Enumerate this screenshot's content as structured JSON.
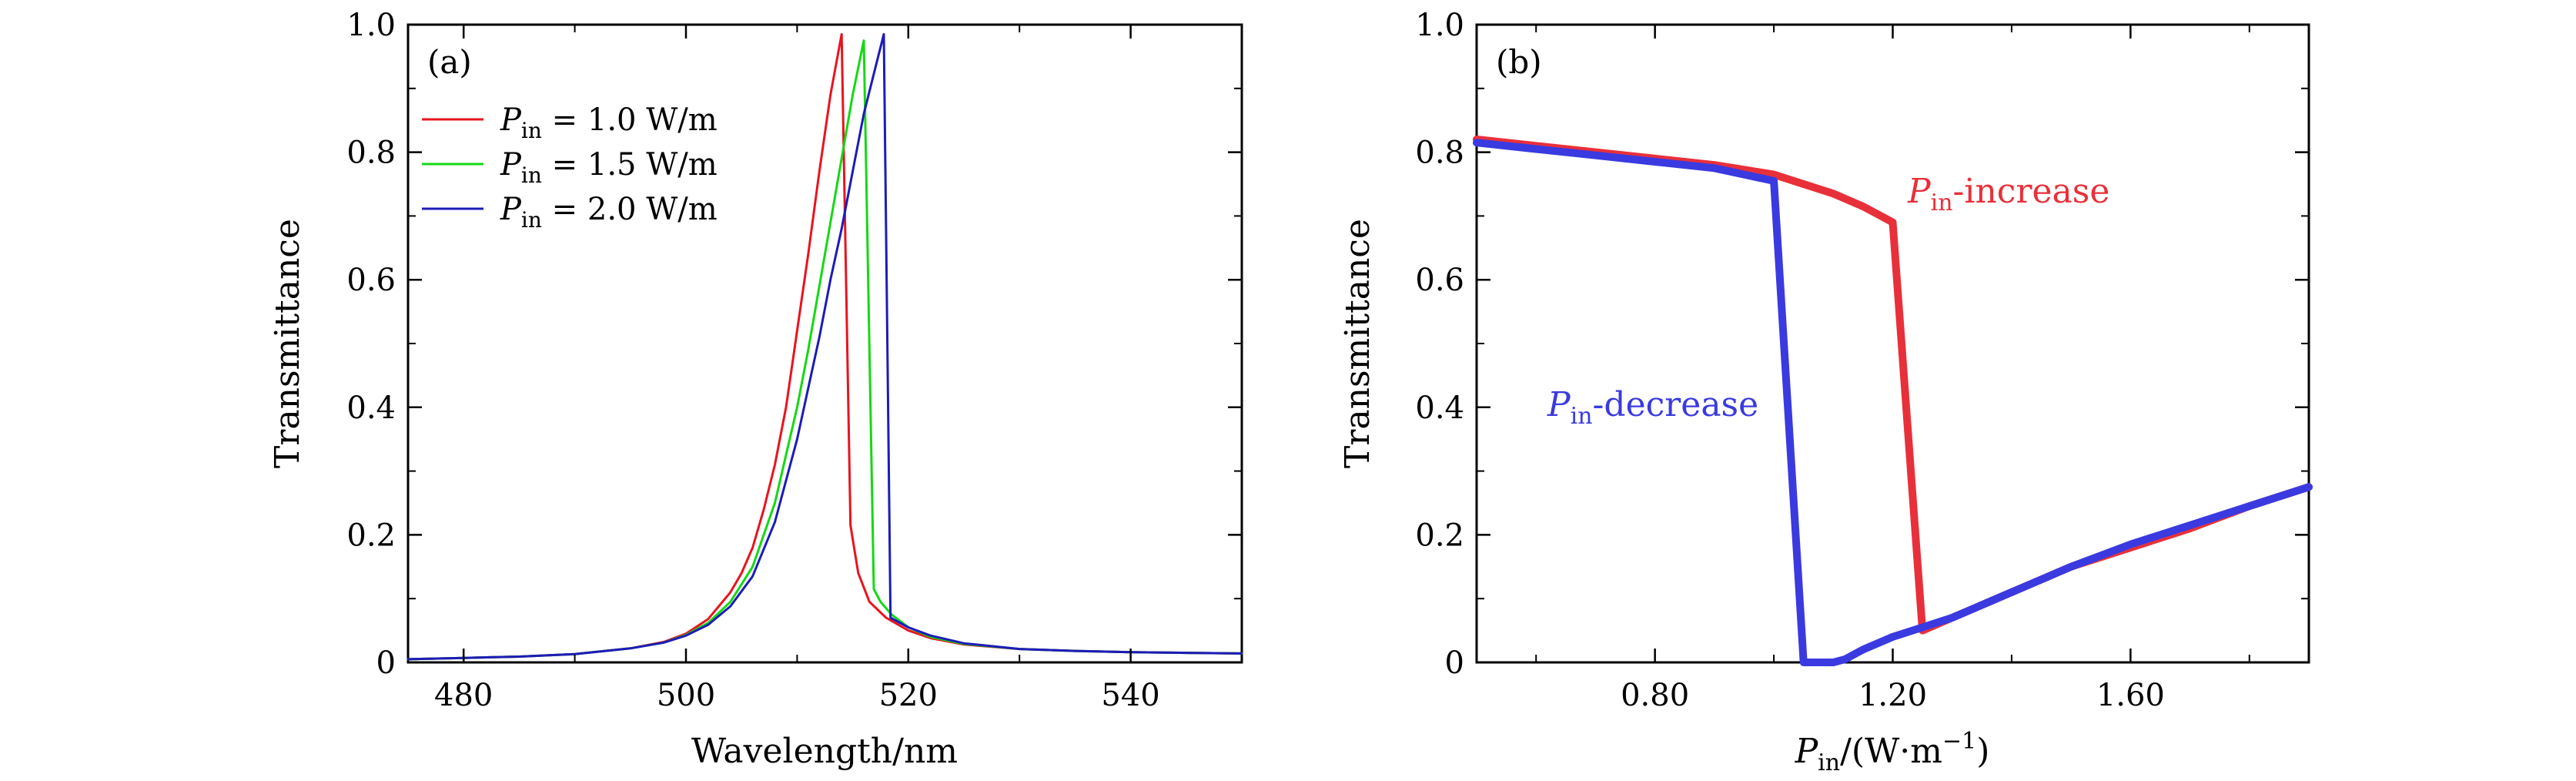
{
  "chart_data": [
    {
      "type": "line",
      "panel_label": "(a)",
      "xlabel": "Wavelength/nm",
      "ylabel": "Transmittance",
      "xlim": [
        475,
        550
      ],
      "ylim": [
        0,
        1.0
      ],
      "xticks": [
        480,
        500,
        520,
        540
      ],
      "xtick_labels": [
        "480",
        "500",
        "520",
        "540"
      ],
      "yticks": [
        0,
        0.2,
        0.4,
        0.6,
        0.8,
        1.0
      ],
      "ytick_labels": [
        "0",
        "0.2",
        "0.4",
        "0.6",
        "0.8",
        "1.0"
      ],
      "legend_position": "top-left",
      "series": [
        {
          "name": "P_in = 1.0 W/m",
          "legend_italic": "P",
          "legend_sub": "in",
          "legend_rest": " = 1.0 W/m",
          "color": "#e8141d",
          "x": [
            475,
            480,
            485,
            490,
            495,
            498,
            500,
            502,
            504,
            505,
            506,
            507,
            508,
            509,
            510,
            511,
            512,
            513,
            514,
            514.8,
            515.5,
            516.5,
            518,
            520,
            522,
            525,
            530,
            535,
            540,
            545,
            550
          ],
          "y": [
            0.005,
            0.007,
            0.009,
            0.013,
            0.022,
            0.032,
            0.045,
            0.068,
            0.11,
            0.14,
            0.18,
            0.24,
            0.31,
            0.4,
            0.52,
            0.64,
            0.77,
            0.89,
            0.985,
            0.215,
            0.14,
            0.095,
            0.07,
            0.05,
            0.038,
            0.028,
            0.021,
            0.018,
            0.016,
            0.015,
            0.014
          ]
        },
        {
          "name": "P_in = 1.5 W/m",
          "legend_italic": "P",
          "legend_sub": "in",
          "legend_rest": " = 1.5 W/m",
          "color": "#14d814",
          "x": [
            475,
            480,
            485,
            490,
            495,
            498,
            500,
            502,
            504,
            506,
            508,
            510,
            511,
            512,
            513,
            514,
            515,
            516,
            516.9,
            517.5,
            518.5,
            520,
            522,
            525,
            530,
            535,
            540,
            545,
            550
          ],
          "y": [
            0.005,
            0.007,
            0.009,
            0.013,
            0.022,
            0.031,
            0.043,
            0.062,
            0.095,
            0.15,
            0.25,
            0.4,
            0.49,
            0.59,
            0.69,
            0.79,
            0.89,
            0.975,
            0.115,
            0.095,
            0.075,
            0.055,
            0.04,
            0.029,
            0.021,
            0.018,
            0.016,
            0.015,
            0.014
          ]
        },
        {
          "name": "P_in = 2.0 W/m",
          "legend_italic": "P",
          "legend_sub": "in",
          "legend_rest": " = 2.0 W/m",
          "color": "#1c1cb8",
          "x": [
            475,
            480,
            485,
            490,
            495,
            498,
            500,
            502,
            504,
            506,
            508,
            510,
            511,
            512,
            513,
            514,
            515,
            516,
            517,
            517.8,
            518.4,
            520,
            522,
            525,
            530,
            535,
            540,
            545,
            550
          ],
          "y": [
            0.005,
            0.007,
            0.009,
            0.013,
            0.022,
            0.031,
            0.042,
            0.059,
            0.088,
            0.135,
            0.22,
            0.35,
            0.43,
            0.51,
            0.6,
            0.68,
            0.77,
            0.86,
            0.93,
            0.985,
            0.07,
            0.055,
            0.042,
            0.03,
            0.021,
            0.018,
            0.016,
            0.015,
            0.014
          ]
        }
      ]
    },
    {
      "type": "line",
      "panel_label": "(b)",
      "xlabel_italic": "P",
      "xlabel_sub": "in",
      "xlabel_rest": "/(W·m",
      "xlabel_sup": "−1",
      "xlabel_close": ")",
      "ylabel": "Transmittance",
      "xlim": [
        0.5,
        1.9
      ],
      "ylim": [
        0,
        1.0
      ],
      "xticks": [
        0.8,
        1.2,
        1.6
      ],
      "xtick_labels": [
        "0.80",
        "1.20",
        "1.60"
      ],
      "yticks": [
        0,
        0.2,
        0.4,
        0.6,
        0.8,
        1.0
      ],
      "ytick_labels": [
        "0",
        "0.2",
        "0.4",
        "0.6",
        "0.8",
        "1.0"
      ],
      "series": [
        {
          "name": "P_in-increase",
          "color": "#e8303a",
          "x": [
            0.5,
            0.6,
            0.7,
            0.8,
            0.9,
            1.0,
            1.05,
            1.1,
            1.15,
            1.18,
            1.2,
            1.25,
            1.3,
            1.4,
            1.5,
            1.6,
            1.7,
            1.8,
            1.9
          ],
          "y": [
            0.82,
            0.81,
            0.8,
            0.79,
            0.78,
            0.765,
            0.75,
            0.735,
            0.715,
            0.7,
            0.69,
            0.05,
            0.07,
            0.11,
            0.15,
            0.18,
            0.21,
            0.245,
            0.275
          ]
        },
        {
          "name": "P_in-decrease",
          "color": "#3a3ae0",
          "x": [
            0.5,
            0.6,
            0.7,
            0.8,
            0.9,
            0.95,
            1.0,
            1.05,
            1.08,
            1.1,
            1.12,
            1.15,
            1.2,
            1.25,
            1.3,
            1.4,
            1.5,
            1.6,
            1.7,
            1.8,
            1.9
          ],
          "y": [
            0.815,
            0.805,
            0.795,
            0.785,
            0.775,
            0.765,
            0.755,
            0.0,
            0.0,
            0.0,
            0.005,
            0.02,
            0.04,
            0.055,
            0.07,
            0.11,
            0.15,
            0.185,
            0.215,
            0.245,
            0.275
          ]
        }
      ],
      "annotations": [
        {
          "italic": "P",
          "sub": "in",
          "rest": "-increase",
          "color": "#e8303a"
        },
        {
          "italic": "P",
          "sub": "in",
          "rest": "-decrease",
          "color": "#3a3ae0"
        }
      ]
    }
  ]
}
